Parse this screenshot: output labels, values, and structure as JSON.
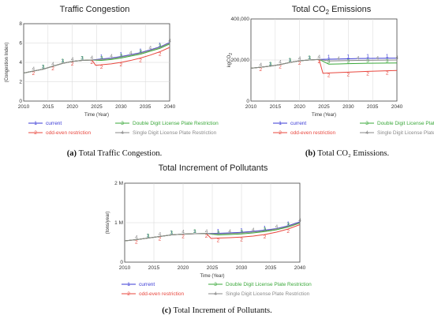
{
  "series_colors": {
    "current": "#3a3ad6",
    "odd_even": "#e8473e",
    "double_digit": "#3aa83a",
    "single_digit": "#8a8a8a"
  },
  "chart_data": [
    {
      "type": "line",
      "id": "a",
      "title": "Traffic Congestion",
      "title_sub": "",
      "title_tail": "",
      "ylabel": "(Congestion Index)",
      "ylabel_sub": "",
      "xlabel": "Time (Year)",
      "xlim": [
        2010,
        2040
      ],
      "ylim": [
        0,
        8
      ],
      "xticks": [
        2010,
        2015,
        2020,
        2025,
        2030,
        2035,
        2040
      ],
      "yticks": [
        0,
        2,
        4,
        6,
        8
      ],
      "ytick_labels": [
        "0",
        "2",
        "4",
        "6",
        "8"
      ],
      "grid": true,
      "caption_label": "(a)",
      "caption_text": "Total Traffic Congestion.",
      "series": [
        {
          "name": "current",
          "marker": "1",
          "colorKey": "current",
          "x": [
            2010,
            2012,
            2014,
            2016,
            2018,
            2020,
            2022,
            2024,
            2026,
            2028,
            2030,
            2032,
            2034,
            2036,
            2038,
            2040
          ],
          "y": [
            2.9,
            3.1,
            3.3,
            3.6,
            3.9,
            4.1,
            4.2,
            4.25,
            4.35,
            4.45,
            4.6,
            4.8,
            5.0,
            5.3,
            5.6,
            6.05
          ]
        },
        {
          "name": "odd-even restriction",
          "marker": "2",
          "colorKey": "odd_even",
          "x": [
            2010,
            2012,
            2014,
            2016,
            2018,
            2020,
            2022,
            2024,
            2024.8,
            2026,
            2028,
            2030,
            2032,
            2034,
            2036,
            2038,
            2040
          ],
          "y": [
            2.9,
            3.1,
            3.3,
            3.6,
            3.9,
            4.1,
            4.2,
            4.25,
            3.7,
            3.75,
            3.85,
            4.0,
            4.2,
            4.45,
            4.75,
            5.1,
            5.55
          ]
        },
        {
          "name": "Double Digit License Plate Restriction",
          "marker": "3",
          "colorKey": "double_digit",
          "x": [
            2010,
            2012,
            2014,
            2016,
            2018,
            2020,
            2022,
            2024,
            2026,
            2028,
            2030,
            2032,
            2034,
            2036,
            2038,
            2040
          ],
          "y": [
            2.9,
            3.1,
            3.3,
            3.6,
            3.9,
            4.1,
            4.2,
            4.25,
            4.2,
            4.3,
            4.45,
            4.65,
            4.85,
            5.15,
            5.45,
            5.9
          ]
        },
        {
          "name": "Single Digit License Plate Restriction",
          "marker": "4",
          "colorKey": "single_digit",
          "x": [
            2010,
            2012,
            2014,
            2016,
            2018,
            2020,
            2022,
            2024,
            2026,
            2028,
            2030,
            2032,
            2034,
            2036,
            2038,
            2040
          ],
          "y": [
            2.9,
            3.1,
            3.3,
            3.6,
            3.9,
            4.1,
            4.2,
            4.25,
            4.3,
            4.4,
            4.55,
            4.75,
            4.95,
            5.25,
            5.55,
            6.0
          ]
        }
      ]
    },
    {
      "type": "line",
      "id": "b",
      "title": "Total CO",
      "title_sub": "2",
      "title_tail": " Emissions",
      "ylabel": "kgCO",
      "ylabel_sub": "2",
      "xlabel": "Time (Year)",
      "xlim": [
        2010,
        2040
      ],
      "ylim": [
        0,
        400000
      ],
      "xticks": [
        2010,
        2015,
        2020,
        2025,
        2030,
        2035,
        2040
      ],
      "yticks": [
        0,
        200000,
        400000
      ],
      "ytick_labels": [
        "0",
        "200,000",
        "400,000"
      ],
      "grid": true,
      "caption_label": "(b)",
      "caption_text": "Total CO₂ Emissions.",
      "series": [
        {
          "name": "current",
          "marker": "1",
          "colorKey": "current",
          "x": [
            2010,
            2012,
            2014,
            2016,
            2018,
            2020,
            2022,
            2024,
            2026,
            2028,
            2030,
            2032,
            2034,
            2036,
            2038,
            2040
          ],
          "y": [
            160000,
            165000,
            170000,
            178000,
            188000,
            196000,
            200000,
            203000,
            204000,
            205000,
            206000,
            207000,
            207500,
            208000,
            208500,
            209000
          ]
        },
        {
          "name": "odd-even restriction",
          "marker": "2",
          "colorKey": "odd_even",
          "x": [
            2010,
            2012,
            2014,
            2016,
            2018,
            2020,
            2022,
            2024,
            2024.8,
            2026,
            2028,
            2030,
            2032,
            2034,
            2036,
            2038,
            2040
          ],
          "y": [
            160000,
            165000,
            170000,
            178000,
            188000,
            196000,
            200000,
            203000,
            135000,
            137000,
            139000,
            141000,
            143000,
            144500,
            146000,
            147500,
            149000
          ]
        },
        {
          "name": "Double Digit License Plate Restriction",
          "marker": "3",
          "colorKey": "double_digit",
          "x": [
            2010,
            2012,
            2014,
            2016,
            2018,
            2020,
            2022,
            2024,
            2026,
            2028,
            2030,
            2032,
            2034,
            2036,
            2038,
            2040
          ],
          "y": [
            160000,
            165000,
            170000,
            178000,
            188000,
            196000,
            200000,
            203000,
            180000,
            181000,
            182000,
            183000,
            184000,
            184500,
            185000,
            185500
          ]
        },
        {
          "name": "Single Digit License Plate Restriction",
          "marker": "4",
          "colorKey": "single_digit",
          "x": [
            2010,
            2012,
            2014,
            2016,
            2018,
            2020,
            2022,
            2024,
            2026,
            2028,
            2030,
            2032,
            2034,
            2036,
            2038,
            2040
          ],
          "y": [
            160000,
            165000,
            170000,
            178000,
            188000,
            196000,
            200000,
            203000,
            195000,
            196000,
            197000,
            198000,
            198500,
            199000,
            199500,
            200000
          ]
        }
      ]
    },
    {
      "type": "line",
      "id": "c",
      "title": "Total Increment of Pollutants",
      "title_sub": "",
      "title_tail": "",
      "ylabel": "(tons/year)",
      "ylabel_sub": "",
      "xlabel": "Time (Year)",
      "xlim": [
        2010,
        2040
      ],
      "ylim": [
        0,
        2000000
      ],
      "xticks": [
        2010,
        2015,
        2020,
        2025,
        2030,
        2035,
        2040
      ],
      "yticks": [
        0,
        1000000,
        2000000
      ],
      "ytick_labels": [
        "0",
        "1 M",
        "2 M"
      ],
      "grid": true,
      "caption_label": "(c)",
      "caption_text": "Total Increment of Pollutants.",
      "series": [
        {
          "name": "current",
          "marker": "1",
          "colorKey": "current",
          "x": [
            2010,
            2012,
            2014,
            2016,
            2018,
            2020,
            2022,
            2024,
            2026,
            2028,
            2030,
            2032,
            2034,
            2036,
            2038,
            2040
          ],
          "y": [
            540000,
            570000,
            610000,
            650000,
            690000,
            710000,
            720000,
            725000,
            730000,
            740000,
            755000,
            780000,
            810000,
            850000,
            920000,
            1020000
          ]
        },
        {
          "name": "odd-even restriction",
          "marker": "2",
          "colorKey": "odd_even",
          "x": [
            2010,
            2012,
            2014,
            2016,
            2018,
            2020,
            2022,
            2024,
            2024.8,
            2026,
            2028,
            2030,
            2032,
            2034,
            2036,
            2038,
            2040
          ],
          "y": [
            540000,
            570000,
            610000,
            650000,
            690000,
            710000,
            720000,
            725000,
            600000,
            610000,
            620000,
            635000,
            660000,
            700000,
            760000,
            840000,
            950000
          ]
        },
        {
          "name": "Double Digit License Plate Restriction",
          "marker": "3",
          "colorKey": "double_digit",
          "x": [
            2010,
            2012,
            2014,
            2016,
            2018,
            2020,
            2022,
            2024,
            2026,
            2028,
            2030,
            2032,
            2034,
            2036,
            2038,
            2040
          ],
          "y": [
            540000,
            570000,
            610000,
            650000,
            690000,
            710000,
            720000,
            725000,
            690000,
            700000,
            715000,
            740000,
            775000,
            820000,
            890000,
            990000
          ]
        },
        {
          "name": "Single Digit License Plate Restriction",
          "marker": "4",
          "colorKey": "single_digit",
          "x": [
            2010,
            2012,
            2014,
            2016,
            2018,
            2020,
            2022,
            2024,
            2026,
            2028,
            2030,
            2032,
            2034,
            2036,
            2038,
            2040
          ],
          "y": [
            540000,
            570000,
            610000,
            650000,
            690000,
            710000,
            720000,
            725000,
            715000,
            725000,
            740000,
            765000,
            795000,
            840000,
            905000,
            1005000
          ]
        }
      ]
    }
  ],
  "legend": [
    {
      "label": "current",
      "marker": "1",
      "colorKey": "current"
    },
    {
      "label": "Double Digit License Plate Restriction",
      "marker": "3",
      "colorKey": "double_digit"
    },
    {
      "label": "odd-even restriction",
      "marker": "2",
      "colorKey": "odd_even"
    },
    {
      "label": "Single Digit License Plate Restriction",
      "marker": "4",
      "colorKey": "single_digit"
    }
  ]
}
